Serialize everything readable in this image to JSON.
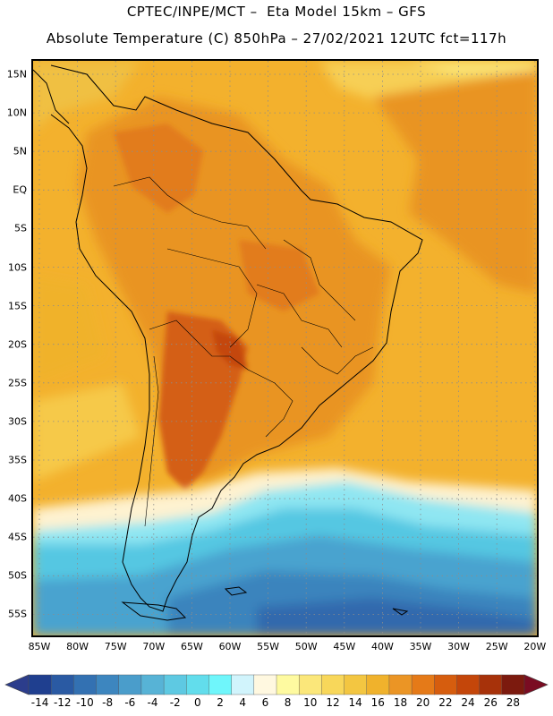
{
  "header": {
    "line1": "CPTEC/INPE/MCT –  Eta Model 15km – GFS",
    "line2": "Absolute Temperature (C) 850hPa – 27/02/2021 12UTC fct=117h"
  },
  "map": {
    "lat_labels": [
      "15N",
      "10N",
      "5N",
      "EQ",
      "5S",
      "10S",
      "15S",
      "20S",
      "25S",
      "30S",
      "35S",
      "40S",
      "45S",
      "50S",
      "55S"
    ],
    "lon_labels": [
      "85W",
      "80W",
      "75W",
      "70W",
      "65W",
      "60W",
      "55W",
      "50W",
      "45W",
      "40W",
      "35W",
      "30W",
      "25W",
      "20W"
    ]
  },
  "colorbar": {
    "labels": [
      "-14",
      "-12",
      "-10",
      "-8",
      "-6",
      "-4",
      "-2",
      "0",
      "2",
      "4",
      "6",
      "8",
      "10",
      "12",
      "14",
      "16",
      "18",
      "20",
      "22",
      "24",
      "26",
      "28"
    ],
    "colors": [
      "#1f3f8f",
      "#2a5aa3",
      "#3371b2",
      "#3d86bf",
      "#4a9dcb",
      "#57b3d6",
      "#5ec9e2",
      "#62ddec",
      "#6ff6fb",
      "#d1f4fc",
      "#fff8e0",
      "#fefaa0",
      "#fbe77a",
      "#f8d75a",
      "#f3c641",
      "#f0b22c",
      "#eb9525",
      "#e57a18",
      "#d65d0e",
      "#c4460a",
      "#a7320a",
      "#7c1a0e"
    ],
    "under_color": "#2c3d8c",
    "over_color": "#7a0c22"
  }
}
